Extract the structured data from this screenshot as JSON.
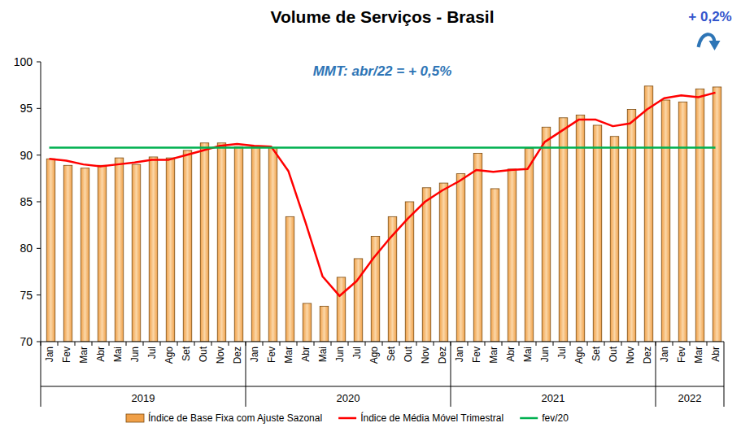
{
  "chart_data": {
    "type": "bar",
    "title": "Volume de Serviços - Brasil",
    "annotations": [
      {
        "text": "MMT: abr/22 = + 0,5%"
      },
      {
        "text": "+ 0,2%"
      }
    ],
    "categories": [
      "Jan",
      "Fev",
      "Mar",
      "Abr",
      "Mai",
      "Jun",
      "Jul",
      "Ago",
      "Set",
      "Out",
      "Nov",
      "Dez",
      "Jan",
      "Fev",
      "Mar",
      "Abr",
      "Mai",
      "Jun",
      "Jul",
      "Ago",
      "Set",
      "Out",
      "Nov",
      "Dez",
      "Jan",
      "Fev",
      "Mar",
      "Abr",
      "Mai",
      "Jun",
      "Jul",
      "Ago",
      "Set",
      "Out",
      "Nov",
      "Dez",
      "Jan",
      "Fev",
      "Mar",
      "Abr"
    ],
    "year_groups": [
      {
        "label": "2019",
        "months": 12
      },
      {
        "label": "2020",
        "months": 12
      },
      {
        "label": "2021",
        "months": 12
      },
      {
        "label": "2022",
        "months": 4
      }
    ],
    "series": [
      {
        "name": "Índice de Base Fixa com Ajuste Sazonal",
        "type": "bar",
        "color": "#f0a048",
        "values": [
          89.6,
          88.9,
          88.6,
          88.9,
          89.7,
          89.0,
          89.8,
          89.7,
          90.5,
          91.3,
          91.3,
          90.9,
          90.9,
          90.8,
          83.4,
          74.1,
          73.8,
          76.9,
          78.9,
          81.3,
          83.4,
          85.0,
          86.5,
          87.0,
          88.0,
          90.2,
          86.4,
          88.5,
          90.7,
          93.0,
          94.0,
          94.3,
          93.2,
          92.0,
          94.9,
          97.4,
          95.9,
          95.7,
          97.1,
          97.3
        ]
      },
      {
        "name": "Índice de Média Móvel Trimestral",
        "type": "line",
        "color": "#ff0000",
        "values": [
          89.6,
          89.4,
          89.0,
          88.8,
          89.0,
          89.2,
          89.5,
          89.5,
          90.0,
          90.5,
          91.0,
          91.2,
          91.0,
          90.9,
          88.3,
          82.8,
          77.0,
          74.9,
          76.5,
          79.0,
          81.2,
          83.2,
          85.0,
          86.2,
          87.2,
          88.4,
          88.2,
          88.4,
          88.5,
          91.4,
          92.6,
          93.8,
          93.8,
          93.1,
          93.4,
          94.9,
          96.1,
          96.4,
          96.2,
          96.7
        ]
      },
      {
        "name": "fev/20",
        "type": "line",
        "color": "#00b050",
        "values": [
          90.8,
          90.8,
          90.8,
          90.8,
          90.8,
          90.8,
          90.8,
          90.8,
          90.8,
          90.8,
          90.8,
          90.8,
          90.8,
          90.8,
          90.8,
          90.8,
          90.8,
          90.8,
          90.8,
          90.8,
          90.8,
          90.8,
          90.8,
          90.8,
          90.8,
          90.8,
          90.8,
          90.8,
          90.8,
          90.8,
          90.8,
          90.8,
          90.8,
          90.8,
          90.8,
          90.8,
          90.8,
          90.8,
          90.8,
          90.8
        ]
      }
    ],
    "ylim": [
      70,
      100
    ],
    "yticks": [
      70,
      75,
      80,
      85,
      90,
      95,
      100
    ],
    "grid": false,
    "legend": "bottom"
  }
}
